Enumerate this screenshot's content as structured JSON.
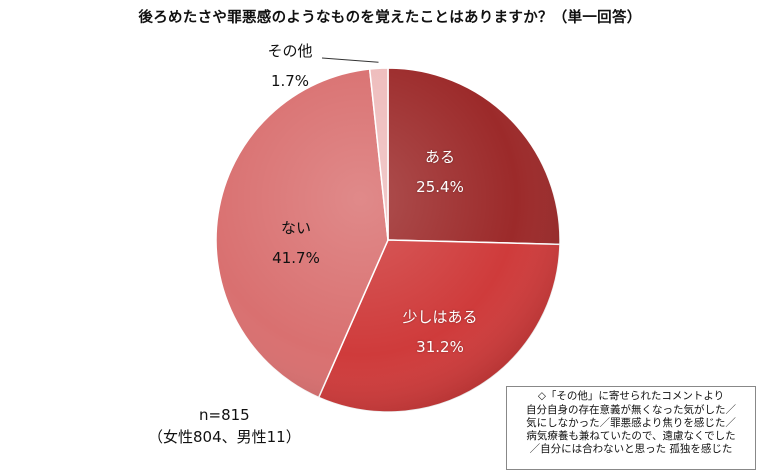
{
  "chart_data": {
    "type": "pie",
    "title": "後ろめたさや罪悪感のようなものを覚えたことはありますか？（単一回答）",
    "slices": [
      {
        "name": "ある",
        "value": 25.4,
        "label": "25.4%",
        "color": "#9c2a2a"
      },
      {
        "name": "少しはある",
        "value": 31.2,
        "label": "31.2%",
        "color": "#cf3b3b"
      },
      {
        "name": "ない",
        "value": 41.7,
        "label": "41.7%",
        "color": "#d97070"
      },
      {
        "name": "その他",
        "value": 1.7,
        "label": "1.7%",
        "color": "#eebcbc"
      }
    ],
    "sample": {
      "n": "n=815",
      "breakdown": "（女性804、男性11）"
    },
    "comments": {
      "caption": "◇「その他」に寄せられたコメントより",
      "lines": [
        "自分自身の存在意義が無くなった気がした／",
        "気にしなかった／罪悪感より焦りを感じた／",
        "病気療養も兼ねていたので、遠慮なくでした",
        "／自分には合わないと思った 孤独を感じた"
      ]
    }
  }
}
